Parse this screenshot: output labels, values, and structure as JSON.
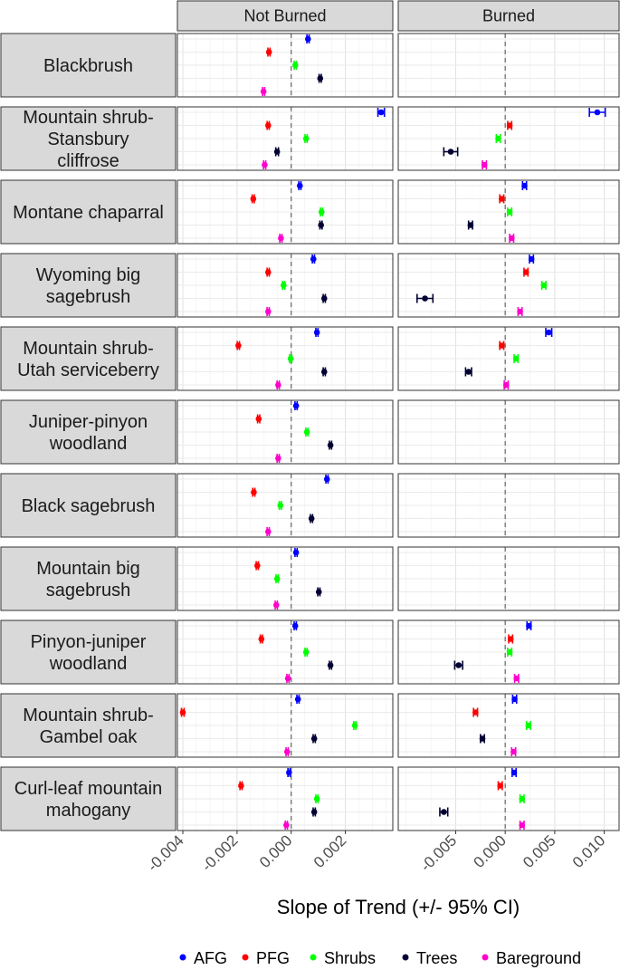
{
  "chart_data": {
    "type": "scatter",
    "subtype": "forest-plot-with-error-bars",
    "xlabel": "Slope of Trend (+/- 95% CI)",
    "columns": [
      {
        "label": "Not Burned",
        "xlim": [
          -0.0042,
          0.00375
        ],
        "ticks": [
          -0.004,
          -0.002,
          0.0,
          0.002
        ],
        "tick_labels": [
          "-0.004",
          "-0.002",
          "0.000",
          "0.002"
        ]
      },
      {
        "label": "Burned",
        "xlim": [
          -0.0108,
          0.0115
        ],
        "ticks": [
          -0.005,
          0.0,
          0.005,
          0.01
        ],
        "tick_labels": [
          "-0.005",
          "0.000",
          "0.005",
          "0.010"
        ]
      }
    ],
    "reference_line": 0,
    "grid": true,
    "legend_position": "bottom",
    "series": [
      {
        "name": "AFG",
        "color": "#0000ff"
      },
      {
        "name": "PFG",
        "color": "#ff0000"
      },
      {
        "name": "Shrubs",
        "color": "#00ff00"
      },
      {
        "name": "Trees",
        "color": "#000033"
      },
      {
        "name": "Bareground",
        "color": "#ff00cc"
      }
    ],
    "rows": [
      {
        "label": [
          "Blackbrush"
        ],
        "not_burned": [
          [
            0.00062,
            4e-05
          ],
          [
            -0.00082,
            4e-05
          ],
          [
            0.00015,
            4e-05
          ],
          [
            0.00107,
            4e-05
          ],
          [
            -0.00102,
            4e-05
          ]
        ],
        "burned": null
      },
      {
        "label": [
          "Mountain shrub-",
          "Stansbury",
          "cliffrose"
        ],
        "not_burned": [
          [
            0.00332,
            0.00012
          ],
          [
            -0.00085,
            4e-05
          ],
          [
            0.00055,
            4e-05
          ],
          [
            -0.00052,
            5e-05
          ],
          [
            -0.00098,
            4e-05
          ]
        ],
        "burned": [
          [
            0.0093,
            0.0008
          ],
          [
            0.00045,
            0.0002
          ],
          [
            -0.0007,
            0.0002
          ],
          [
            -0.0055,
            0.0007
          ],
          [
            -0.0021,
            0.0002
          ]
        ]
      },
      {
        "label": [
          "Montane chaparral"
        ],
        "not_burned": [
          [
            0.00032,
            4e-05
          ],
          [
            -0.0014,
            4e-05
          ],
          [
            0.00112,
            4e-05
          ],
          [
            0.0011,
            4e-05
          ],
          [
            -0.00038,
            4e-05
          ]
        ],
        "burned": [
          [
            0.00195,
            0.0002
          ],
          [
            -0.00035,
            0.0002
          ],
          [
            0.00045,
            0.0002
          ],
          [
            -0.0035,
            0.0002
          ],
          [
            0.00065,
            0.0002
          ]
        ]
      },
      {
        "label": [
          "Wyoming big",
          "sagebrush"
        ],
        "not_burned": [
          [
            0.00082,
            4e-05
          ],
          [
            -0.00085,
            4e-05
          ],
          [
            -0.00028,
            4e-05
          ],
          [
            0.00122,
            4e-05
          ],
          [
            -0.00085,
            4e-05
          ]
        ],
        "burned": [
          [
            0.00265,
            0.0002
          ],
          [
            0.0021,
            0.0002
          ],
          [
            0.0039,
            0.0002
          ],
          [
            -0.0081,
            0.0008
          ],
          [
            0.0015,
            0.0002
          ]
        ]
      },
      {
        "label": [
          "Mountain shrub-",
          "Utah serviceberry"
        ],
        "not_burned": [
          [
            0.00095,
            4e-05
          ],
          [
            -0.00195,
            4e-05
          ],
          [
            -2e-05,
            4e-05
          ],
          [
            0.00122,
            4e-05
          ],
          [
            -0.00048,
            4e-05
          ]
        ],
        "burned": [
          [
            0.0044,
            0.0003
          ],
          [
            -0.00035,
            0.0002
          ],
          [
            0.0011,
            0.0002
          ],
          [
            -0.0037,
            0.0003
          ],
          [
            0.0001,
            0.0002
          ]
        ]
      },
      {
        "label": [
          "Juniper-pinyon",
          "woodland"
        ],
        "not_burned": [
          [
            0.00018,
            4e-05
          ],
          [
            -0.0012,
            4e-05
          ],
          [
            0.00058,
            4e-05
          ],
          [
            0.00145,
            4e-05
          ],
          [
            -0.00048,
            4e-05
          ]
        ],
        "burned": null
      },
      {
        "label": [
          "Black sagebrush"
        ],
        "not_burned": [
          [
            0.00132,
            4e-05
          ],
          [
            -0.00138,
            4e-05
          ],
          [
            -0.0004,
            4e-05
          ],
          [
            0.00075,
            4e-05
          ],
          [
            -0.00085,
            4e-05
          ]
        ],
        "burned": null
      },
      {
        "label": [
          "Mountain big",
          "sagebrush"
        ],
        "not_burned": [
          [
            0.00018,
            4e-05
          ],
          [
            -0.00125,
            4e-05
          ],
          [
            -0.00052,
            4e-05
          ],
          [
            0.00102,
            4e-05
          ],
          [
            -0.00055,
            4e-05
          ]
        ],
        "burned": null
      },
      {
        "label": [
          "Pinyon-juniper",
          "woodland"
        ],
        "not_burned": [
          [
            0.00015,
            4e-05
          ],
          [
            -0.0011,
            4e-05
          ],
          [
            0.00055,
            4e-05
          ],
          [
            0.00145,
            4e-05
          ],
          [
            -0.00012,
            4e-05
          ]
        ],
        "burned": [
          [
            0.0024,
            0.0002
          ],
          [
            0.00055,
            0.0002
          ],
          [
            0.00045,
            0.0002
          ],
          [
            -0.0047,
            0.0004
          ],
          [
            0.00115,
            0.0002
          ]
        ]
      },
      {
        "label": [
          "Mountain shrub-",
          "Gambel oak"
        ],
        "not_burned": [
          [
            0.00025,
            4e-05
          ],
          [
            -0.004,
            5e-05
          ],
          [
            0.00235,
            4e-05
          ],
          [
            0.00085,
            4e-05
          ],
          [
            -0.00015,
            4e-05
          ]
        ],
        "burned": [
          [
            0.00095,
            0.0002
          ],
          [
            -0.003,
            0.0002
          ],
          [
            0.00235,
            0.0002
          ],
          [
            -0.0023,
            0.0002
          ],
          [
            0.00085,
            0.0002
          ]
        ]
      },
      {
        "label": [
          "Curl-leaf mountain",
          "mahogany"
        ],
        "not_burned": [
          [
            -8e-05,
            4e-05
          ],
          [
            -0.00185,
            4e-05
          ],
          [
            0.00095,
            4e-05
          ],
          [
            0.00085,
            4e-05
          ],
          [
            -0.00018,
            4e-05
          ]
        ],
        "burned": [
          [
            0.0009,
            0.0002
          ],
          [
            -0.0005,
            0.0002
          ],
          [
            0.0017,
            0.0002
          ],
          [
            -0.0062,
            0.0004
          ],
          [
            0.0017,
            0.0002
          ]
        ]
      }
    ]
  }
}
